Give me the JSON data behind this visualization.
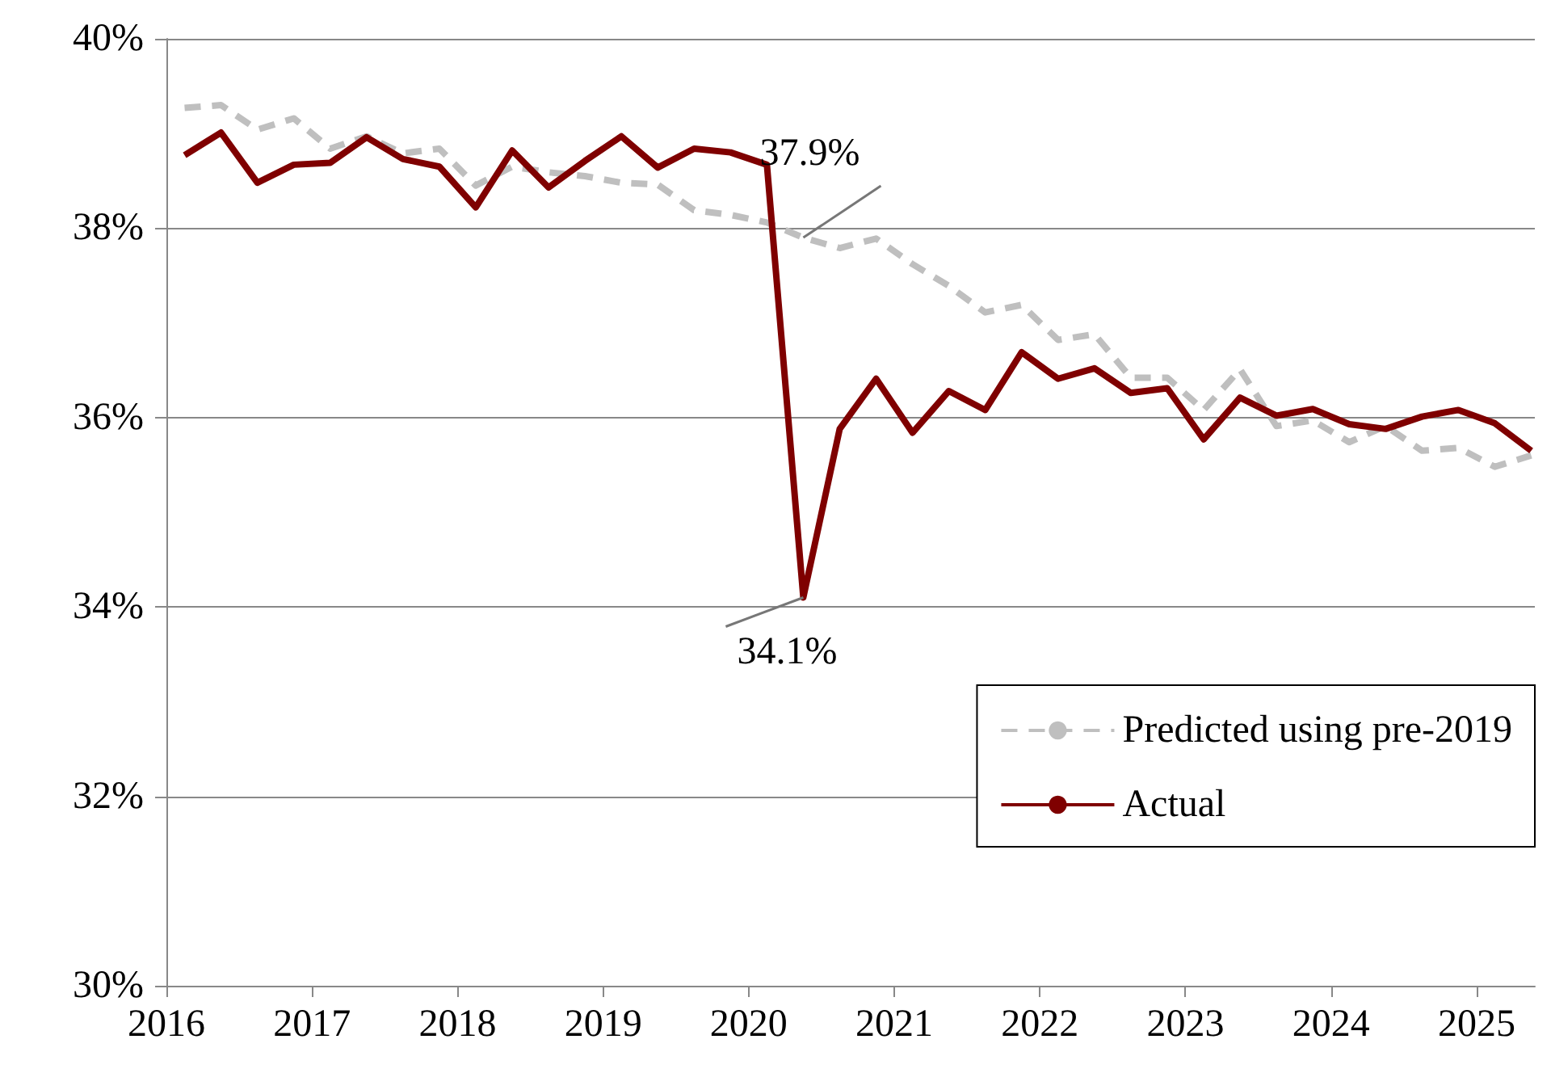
{
  "chart_data": {
    "type": "line",
    "x": [
      2016.125,
      2016.375,
      2016.625,
      2016.875,
      2017.125,
      2017.375,
      2017.625,
      2017.875,
      2018.125,
      2018.375,
      2018.625,
      2018.875,
      2019.125,
      2019.375,
      2019.625,
      2019.875,
      2020.125,
      2020.375,
      2020.625,
      2020.875,
      2021.125,
      2021.375,
      2021.625,
      2021.875,
      2022.125,
      2022.375,
      2022.625,
      2022.875,
      2023.125,
      2023.375,
      2023.625,
      2023.875,
      2024.125,
      2024.375,
      2024.625,
      2024.875,
      2025.125,
      2025.375
    ],
    "series": [
      {
        "name": "Predicted using pre-2019",
        "color": "#bfbfbf",
        "line_style": "dashed",
        "values": [
          39.27,
          39.3,
          39.04,
          39.16,
          38.84,
          38.97,
          38.79,
          38.84,
          38.45,
          38.65,
          38.59,
          38.55,
          38.48,
          38.46,
          38.19,
          38.14,
          38.06,
          37.9,
          37.79,
          37.89,
          37.62,
          37.39,
          37.11,
          37.19,
          36.82,
          36.88,
          36.42,
          36.42,
          36.08,
          36.51,
          35.91,
          35.97,
          35.74,
          35.91,
          35.65,
          35.68,
          35.48,
          35.6
        ]
      },
      {
        "name": "Actual",
        "color": "#7f0000",
        "line_style": "solid",
        "values": [
          38.77,
          39.01,
          38.48,
          38.67,
          38.69,
          38.96,
          38.73,
          38.65,
          38.22,
          38.82,
          38.43,
          38.71,
          38.97,
          38.64,
          38.84,
          38.8,
          38.67,
          34.1,
          35.88,
          36.41,
          35.84,
          36.28,
          36.08,
          36.69,
          36.41,
          36.52,
          36.26,
          36.31,
          35.77,
          36.21,
          36.02,
          36.09,
          35.93,
          35.88,
          36.01,
          36.08,
          35.94,
          35.65
        ]
      }
    ],
    "xlim": [
      2016,
      2025.4
    ],
    "xticks": [
      2016,
      2017,
      2018,
      2019,
      2020,
      2021,
      2022,
      2023,
      2024,
      2025
    ],
    "ylim": [
      30,
      40
    ],
    "yticks": [
      {
        "value": 30,
        "label": "30%"
      },
      {
        "value": 32,
        "label": "32%"
      },
      {
        "value": 34,
        "label": "34%"
      },
      {
        "value": 36,
        "label": "36%"
      },
      {
        "value": 38,
        "label": "38%"
      },
      {
        "value": 40,
        "label": "40%"
      }
    ],
    "annotations": [
      {
        "text": "37.9%",
        "x": 2020.375,
        "y": 37.9
      },
      {
        "text": "34.1%",
        "x": 2020.375,
        "y": 34.1
      }
    ],
    "grid": "y",
    "legend": "bottom right",
    "marker": "none"
  }
}
